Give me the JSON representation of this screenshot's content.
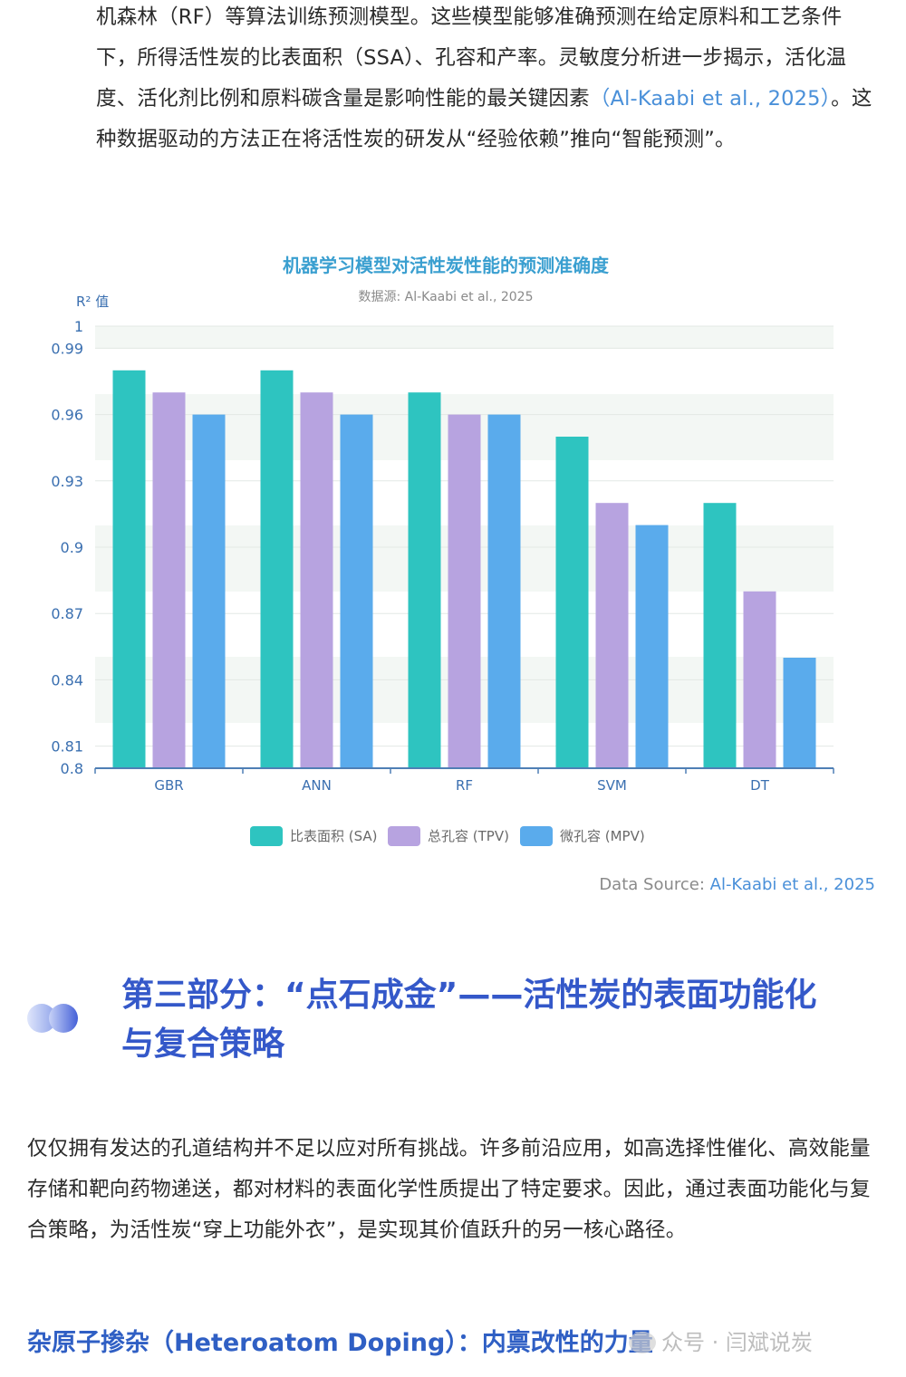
{
  "intro": {
    "text": "机森林（RF）等算法训练预测模型。这些模型能够准确预测在给定原料和工艺条件下，所得活性炭的比表面积（SSA）、孔容和产率。灵敏度分析进一步揭示，活化温度、活化剂比例和原料碳含量是影响性能的最关键因素",
    "citation": "（Al-Kaabi et al., 2025）",
    "text_after": "。这种数据驱动的方法正在将活性炭的研发从“经验依赖”推向“智能预测”。"
  },
  "chart_data": {
    "type": "bar",
    "title": "机器学习模型对活性炭性能的预测准确度",
    "subtitle": "数据源: Al-Kaabi et al., 2025",
    "ylabel": "R² 值",
    "xlabel": "",
    "ylim": [
      0.8,
      1.0
    ],
    "yticks": [
      0.8,
      0.81,
      0.84,
      0.87,
      0.9,
      0.93,
      0.96,
      0.99,
      1
    ],
    "categories": [
      "GBR",
      "ANN",
      "RF",
      "SVM",
      "DT"
    ],
    "series": [
      {
        "name": "比表面积 (SA)",
        "color": "#2ec4c0",
        "values": [
          0.98,
          0.98,
          0.97,
          0.95,
          0.92
        ]
      },
      {
        "name": "总孔容 (TPV)",
        "color": "#b7a3e0",
        "values": [
          0.97,
          0.97,
          0.96,
          0.92,
          0.88
        ]
      },
      {
        "name": "微孔容 (MPV)",
        "color": "#5aabec",
        "values": [
          0.96,
          0.96,
          0.96,
          0.91,
          0.85
        ]
      }
    ],
    "grid": true,
    "legend_position": "bottom"
  },
  "source_note": {
    "label": "Data Source: ",
    "citation": "Al-Kaabi et al., 2025"
  },
  "section": {
    "heading": "第三部分：“点石成金”——活性炭的表面功能化与复合策略"
  },
  "body2": {
    "text": "仅仅拥有发达的孔道结构并不足以应对所有挑战。许多前沿应用，如高选择性催化、高效能量存储和靶向药物递送，都对材料的表面化学性质提出了特定要求。因此，通过表面功能化与复合策略，为活性炭“穿上功能外衣”，是实现其价值跃升的另一核心路径。"
  },
  "subheading": {
    "text": "杂原子掺杂（Heteroatom Doping）：内禀改性的力量"
  },
  "watermark": {
    "text": "众号 · 闫斌说炭"
  }
}
